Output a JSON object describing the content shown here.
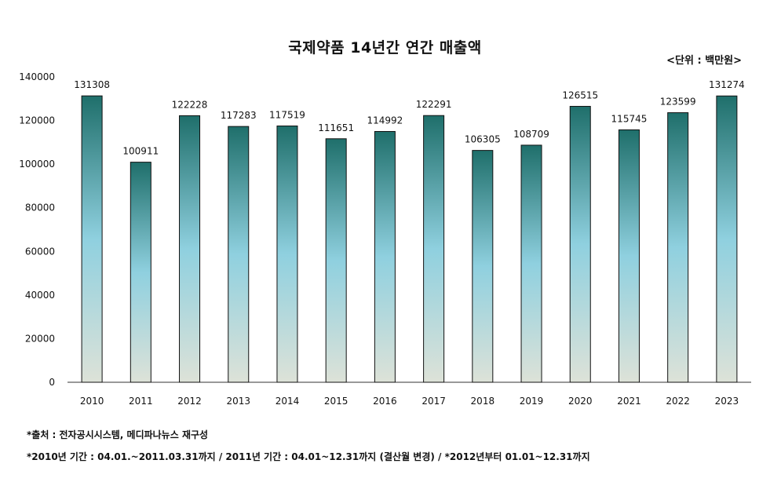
{
  "chart_data": {
    "type": "bar",
    "title": "국제약품 14년간 연간 매출액",
    "unit_label": "<단위 : 백만원>",
    "categories": [
      "2010",
      "2011",
      "2012",
      "2013",
      "2014",
      "2015",
      "2016",
      "2017",
      "2018",
      "2019",
      "2020",
      "2021",
      "2022",
      "2023"
    ],
    "values": [
      131308,
      100911,
      122228,
      117283,
      117519,
      111651,
      114992,
      122291,
      106305,
      108709,
      126515,
      115745,
      123599,
      131274
    ],
    "ylim": [
      0,
      140000
    ],
    "yticks": [
      0,
      20000,
      40000,
      60000,
      80000,
      100000,
      120000,
      140000
    ],
    "grid": false,
    "legend": "none",
    "colors": {
      "top": "#1f6f6b",
      "mid": "#8fd0df",
      "bottom": "#dde2d8"
    }
  },
  "notes": {
    "source": "*출처 : 전자공시시스템, 메디파나뉴스 재구성",
    "period": "*2010년 기간 : 04.01.~2011.03.31까지 / 2011년 기간 : 04.01~12.31까지 (결산월 변경) / *2012년부터 01.01~12.31까지"
  }
}
